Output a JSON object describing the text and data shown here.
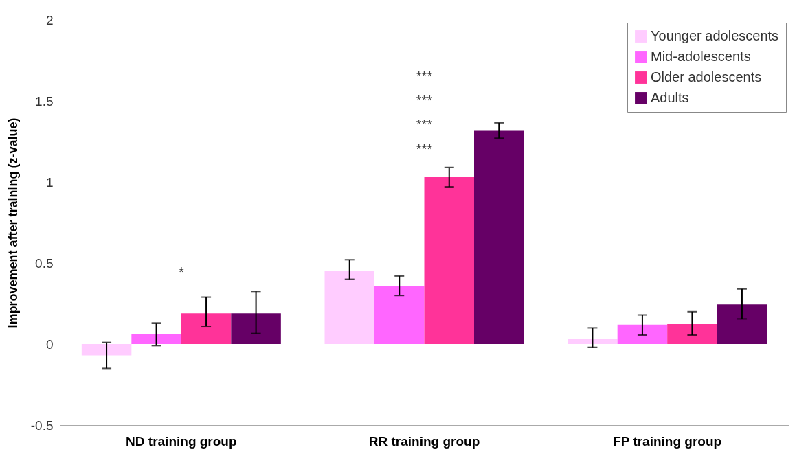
{
  "chart_data": {
    "type": "bar",
    "ylabel": "Improvement after training (z-value)",
    "categories": [
      "ND training group",
      "RR training group",
      "FP training group"
    ],
    "series": [
      {
        "name": "Younger adolescents",
        "color": "#ffccff",
        "values": [
          -0.07,
          0.45,
          0.03
        ],
        "errors": [
          [
            -0.15,
            0.01
          ],
          [
            0.4,
            0.52
          ],
          [
            -0.02,
            0.1
          ]
        ]
      },
      {
        "name": "Mid-adolescents",
        "color": "#ff66ff",
        "values": [
          0.06,
          0.36,
          0.12
        ],
        "errors": [
          [
            -0.01,
            0.13
          ],
          [
            0.3,
            0.42
          ],
          [
            0.055,
            0.18
          ]
        ]
      },
      {
        "name": "Older adolescents",
        "color": "#ff3399",
        "values": [
          0.19,
          1.03,
          0.125
        ],
        "errors": [
          [
            0.11,
            0.29
          ],
          [
            0.97,
            1.09
          ],
          [
            0.055,
            0.2
          ]
        ]
      },
      {
        "name": "Adults",
        "color": "#660066",
        "values": [
          0.19,
          1.32,
          0.245
        ],
        "errors": [
          [
            0.065,
            0.325
          ],
          [
            1.27,
            1.365
          ],
          [
            0.155,
            0.34
          ]
        ]
      }
    ],
    "annotations": [
      "*",
      "***",
      "***",
      "***",
      "***"
    ],
    "ylim": [
      -0.5,
      2
    ],
    "yticks": [
      -0.5,
      0,
      0.5,
      1,
      1.5,
      2
    ],
    "grid": false,
    "legend": "top right"
  }
}
